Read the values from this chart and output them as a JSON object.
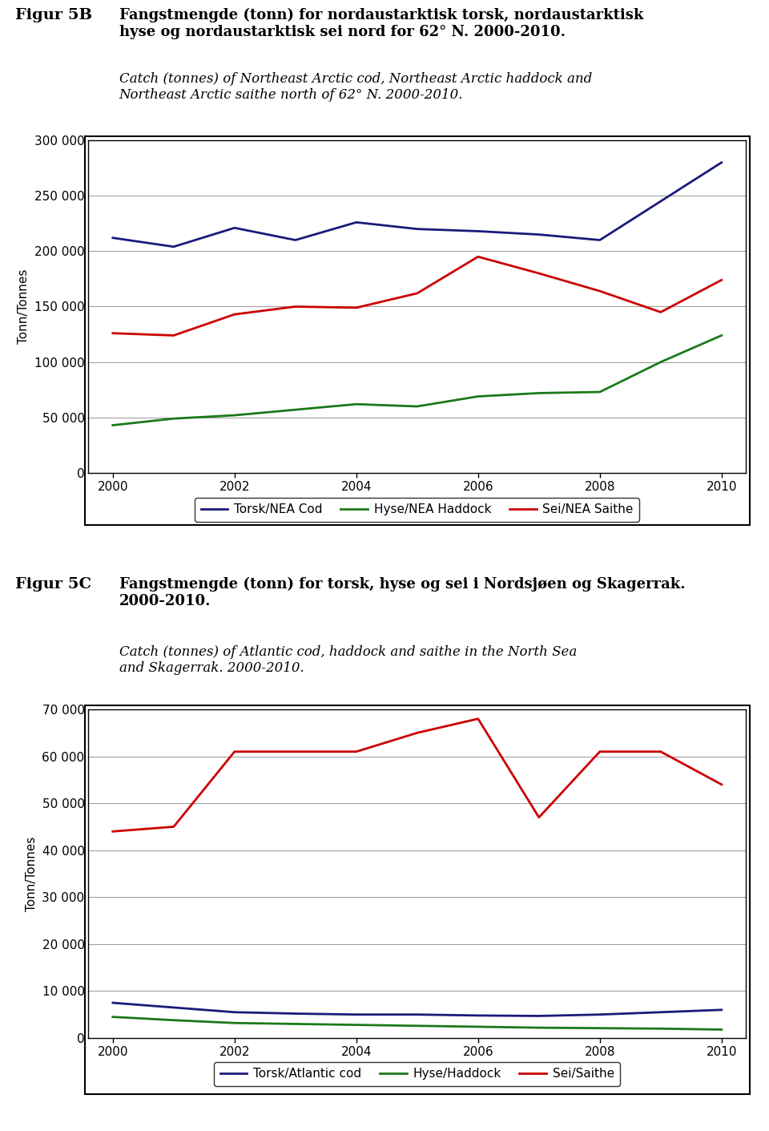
{
  "fig5b": {
    "label": "Figur 5B",
    "title_bold": "Fangstmengde (tonn) for nordaustarktisk torsk, nordaustarktisk\nhyse og nordaustarktisk sei nord for 62° N. 2000-2010.",
    "subtitle": "Catch (tonnes) of Northeast Arctic cod, Northeast Arctic haddock and\nNortheast Arctic saithe north of 62° N. 2000-2010.",
    "ylabel": "Tonn/Tonnes",
    "years": [
      2000,
      2001,
      2002,
      2003,
      2004,
      2005,
      2006,
      2007,
      2008,
      2009,
      2010
    ],
    "torsk": [
      212000,
      204000,
      221000,
      210000,
      226000,
      220000,
      218000,
      215000,
      210000,
      245000,
      280000
    ],
    "hyse": [
      43000,
      49000,
      52000,
      57000,
      62000,
      60000,
      69000,
      72000,
      73000,
      100000,
      124000
    ],
    "sei": [
      126000,
      124000,
      143000,
      150000,
      149000,
      162000,
      195000,
      180000,
      164000,
      145000,
      174000
    ],
    "torsk_color": "#1a1a7a",
    "hyse_color": "#1a7a1a",
    "sei_color": "#cc0000",
    "ylim": [
      0,
      300000
    ],
    "yticks": [
      0,
      50000,
      100000,
      150000,
      200000,
      250000,
      300000
    ],
    "ytick_labels": [
      "0",
      "50 000",
      "100 000",
      "150 000",
      "200 000",
      "250 000",
      "300 000"
    ],
    "legend_torsk": "Torsk/NEA Cod",
    "legend_hyse": "Hyse/NEA Haddock",
    "legend_sei": "Sei/NEA Saithe"
  },
  "fig5c": {
    "label": "Figur 5C",
    "title_bold": "Fangstmengde (tonn) for torsk, hyse og sei i Nordsjøen og Skagerrak.\n2000-2010.",
    "subtitle": "Catch (tonnes) of Atlantic cod, haddock and saithe in the North Sea\nand Skagerrak. 2000-2010.",
    "ylabel": "Tonn/Tonnes",
    "years": [
      2000,
      2001,
      2002,
      2003,
      2004,
      2005,
      2006,
      2007,
      2008,
      2009,
      2010
    ],
    "torsk": [
      7500,
      6500,
      5500,
      5200,
      5000,
      5000,
      4800,
      4700,
      5000,
      5500,
      6000
    ],
    "hyse": [
      4500,
      3800,
      3200,
      3000,
      2800,
      2600,
      2400,
      2200,
      2100,
      2000,
      1800
    ],
    "sei": [
      44000,
      45000,
      61000,
      61000,
      61000,
      65000,
      68000,
      47000,
      61000,
      61000,
      54000
    ],
    "torsk_color": "#1a1a7a",
    "hyse_color": "#1a7a1a",
    "sei_color": "#cc0000",
    "ylim": [
      0,
      70000
    ],
    "yticks": [
      0,
      10000,
      20000,
      30000,
      40000,
      50000,
      60000,
      70000
    ],
    "ytick_labels": [
      "0",
      "10 000",
      "20 000",
      "30 000",
      "40 000",
      "50 000",
      "60 000",
      "70 000"
    ],
    "legend_torsk": "Torsk/Atlantic cod",
    "legend_hyse": "Hyse/Haddock",
    "legend_sei": "Sei/Saithe"
  },
  "page_bg": "#ffffff",
  "linewidth": 2.0,
  "label_fontsize": 14,
  "title_fontsize": 13,
  "subtitle_fontsize": 12,
  "axis_label_fontsize": 11,
  "tick_fontsize": 11,
  "legend_fontsize": 11
}
